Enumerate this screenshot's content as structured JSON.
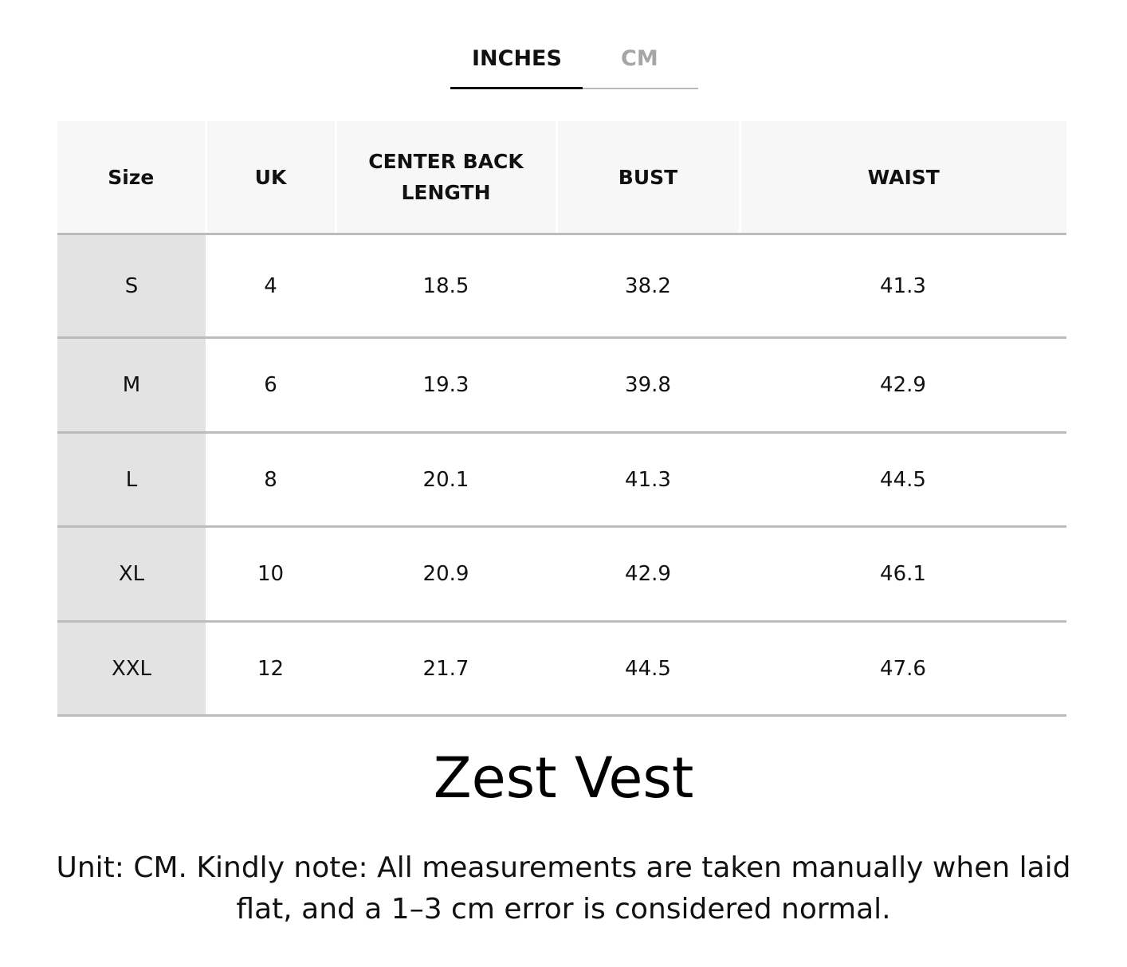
{
  "tabs": [
    "INCHES",
    "CM"
  ],
  "table": {
    "headers": [
      "Size",
      "UK",
      "CENTER BACK LENGTH",
      "BUST",
      "WAIST"
    ],
    "rows": [
      [
        "S",
        "4",
        "18.5",
        "38.2",
        "41.3"
      ],
      [
        "M",
        "6",
        "19.3",
        "39.8",
        "42.9"
      ],
      [
        "L",
        "8",
        "20.1",
        "41.3",
        "44.5"
      ],
      [
        "XL",
        "10",
        "20.9",
        "42.9",
        "46.1"
      ],
      [
        "XXL",
        "12",
        "21.7",
        "44.5",
        "47.6"
      ]
    ]
  },
  "title": "Zest Vest",
  "note": "Unit: CM. Kindly note: All measurements are taken manually when laid flat, and a 1–3 cm error is considered normal."
}
